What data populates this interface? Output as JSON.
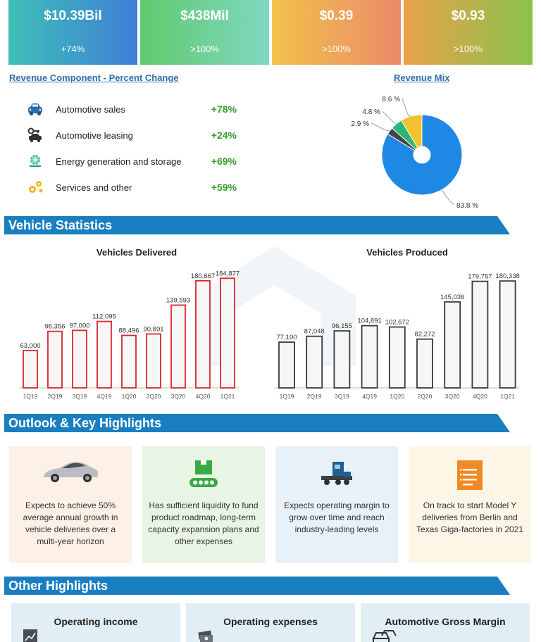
{
  "kpis": [
    {
      "value": "$10.39Bil",
      "change": "+74%"
    },
    {
      "value": "$438Mil",
      "change": ">100%"
    },
    {
      "value": "$0.39",
      "change": ">100%"
    },
    {
      "value": "$0.93",
      "change": ">100%"
    }
  ],
  "revenue_component": {
    "title": "Revenue Component - Percent Change",
    "items": [
      {
        "label": "Automotive sales",
        "change": "+78%",
        "icon": "car-icon"
      },
      {
        "label": "Automotive leasing",
        "change": "+24%",
        "icon": "car-key-icon"
      },
      {
        "label": "Energy generation and storage",
        "change": "+69%",
        "icon": "solar-panel-icon"
      },
      {
        "label": "Services and other",
        "change": "+59%",
        "icon": "gears-icon"
      }
    ]
  },
  "sections": {
    "vehicle_statistics": "Vehicle Statistics",
    "outlook": "Outlook & Key Highlights",
    "other": "Other Highlights"
  },
  "outlook_cards": [
    {
      "text": "Expects to achieve 50% average annual growth in vehicle deliveries over a multi-year horizon",
      "bg": "#fdf0e6",
      "icon": "electric-car-icon"
    },
    {
      "text": "Has sufficient liquidity to fund product roadmap, long-term capacity expansion plans and other expenses",
      "bg": "#e9f5e4",
      "icon": "conveyor-icon"
    },
    {
      "text": "Expects operating margin to grow over time and reach industry-leading levels",
      "bg": "#e8f1f8",
      "icon": "truck-icon"
    },
    {
      "text": "On track to start Model Y deliveries from Berlin and Texas Giga-factories in 2021",
      "bg": "#fdf6e6",
      "icon": "document-icon"
    }
  ],
  "other_highlights": [
    {
      "title": "Operating income",
      "icon": "growth-chart-icon"
    },
    {
      "title": "Operating expenses",
      "icon": "money-stack-icon"
    },
    {
      "title": "Automotive Gross Margin",
      "icon": "cars-icon"
    }
  ],
  "colors": {
    "band_blue": "#1a7fc1",
    "link_blue": "#2d6fae",
    "positive_green": "#3a9b2e",
    "bar_red": "#d8262b",
    "bar_gray": "#3a3a3a"
  },
  "chart_data": [
    {
      "type": "pie",
      "title": "Revenue Mix",
      "categories": [
        "Automotive sales",
        "Automotive leasing",
        "Energy generation and storage",
        "Services and other"
      ],
      "values": [
        83.8,
        2.9,
        4.8,
        8.6
      ],
      "labels": [
        "83.8 %",
        "2.9 %",
        "4.8 %",
        "8.6 %"
      ],
      "colors": [
        "#1e88e5",
        "#444444",
        "#2bb673",
        "#f2c12e"
      ],
      "donut": true
    },
    {
      "type": "bar",
      "title": "Vehicles Delivered",
      "categories": [
        "1Q19",
        "2Q19",
        "3Q19",
        "4Q19",
        "1Q20",
        "2Q20",
        "3Q20",
        "4Q20",
        "1Q21"
      ],
      "values": [
        63000,
        95356,
        97000,
        112095,
        88496,
        90891,
        139593,
        180667,
        184877
      ],
      "labels": [
        "63,000",
        "95,356",
        "97,000",
        "112,095",
        "88,496",
        "90,891",
        "139,593",
        "180,667",
        "184,877"
      ],
      "bar_outline": "#d8262b",
      "ylim": [
        0,
        190000
      ]
    },
    {
      "type": "bar",
      "title": "Vehicles Produced",
      "categories": [
        "1Q19",
        "2Q19",
        "3Q19",
        "4Q19",
        "1Q20",
        "2Q20",
        "3Q20",
        "4Q20",
        "1Q21"
      ],
      "values": [
        77100,
        87048,
        96155,
        104891,
        102672,
        82272,
        145036,
        179757,
        180338
      ],
      "labels": [
        "77,100",
        "87,048",
        "96,155",
        "104,891",
        "102,672",
        "82,272",
        "145,036",
        "179,757",
        "180,338"
      ],
      "bar_outline": "#3a3a3a",
      "ylim": [
        0,
        190000
      ]
    }
  ]
}
